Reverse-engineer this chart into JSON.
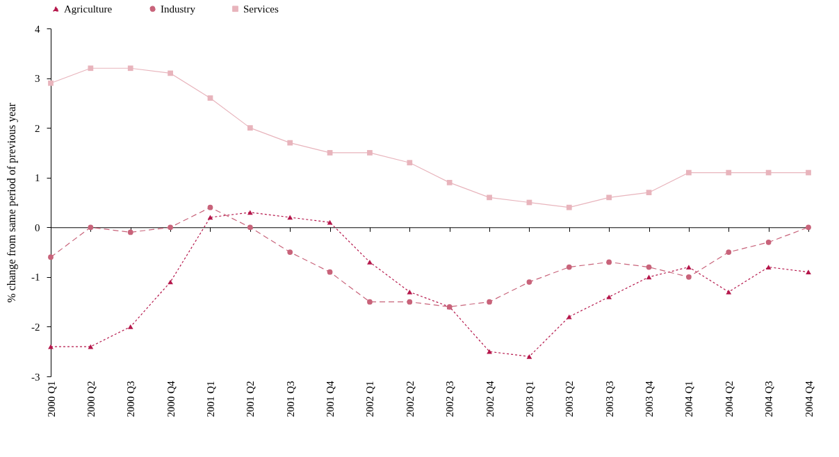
{
  "chart_data": {
    "type": "line",
    "ylabel": "% change from same period of previous year",
    "categories": [
      "2000 Q1",
      "2000 Q2",
      "2000 Q3",
      "2000 Q4",
      "2001 Q1",
      "2001 Q2",
      "2001 Q3",
      "2001 Q4",
      "2002 Q1",
      "2002 Q2",
      "2002 Q3",
      "2002 Q4",
      "2003 Q1",
      "2003 Q2",
      "2003 Q3",
      "2003 Q4",
      "2004 Q1",
      "2004 Q2",
      "2004 Q3",
      "2004 Q4"
    ],
    "series": [
      {
        "name": "Agriculture",
        "color": "#b5174b",
        "marker": "triangle",
        "line_style": "dotted",
        "values": [
          -2.4,
          -2.4,
          -2.0,
          -1.1,
          0.2,
          0.3,
          0.2,
          0.1,
          -0.7,
          -1.3,
          -1.6,
          -2.5,
          -2.6,
          -1.8,
          -1.4,
          -1.0,
          -0.8,
          -1.3,
          -0.8,
          -0.9
        ]
      },
      {
        "name": "Industry",
        "color": "#c8637a",
        "marker": "circle",
        "line_style": "dashed",
        "values": [
          -0.6,
          0,
          -0.1,
          0,
          0.4,
          0,
          -0.5,
          -0.9,
          -1.5,
          -1.5,
          -1.6,
          -1.5,
          -1.1,
          -0.8,
          -0.7,
          -0.8,
          -1.0,
          -0.5,
          -0.3,
          0
        ]
      },
      {
        "name": "Services",
        "color": "#e8b4bc",
        "marker": "square",
        "line_style": "solid",
        "values": [
          2.9,
          3.2,
          3.2,
          3.1,
          2.6,
          2.0,
          1.7,
          1.5,
          1.5,
          1.3,
          0.9,
          0.6,
          0.5,
          0.4,
          0.6,
          0.7,
          1.1,
          1.1,
          1.1,
          1.1
        ]
      }
    ],
    "ylim": [
      -3,
      4
    ],
    "yticks": [
      {
        "value": -3,
        "label": "-3"
      },
      {
        "value": -2,
        "label": "-2"
      },
      {
        "value": -1,
        "label": "-1"
      },
      {
        "value": 0,
        "label": "0"
      },
      {
        "value": 1,
        "label": "1"
      },
      {
        "value": 2,
        "label": "2"
      },
      {
        "value": 3,
        "label": "3"
      },
      {
        "value": 4,
        "label": "4"
      }
    ],
    "legend": "top"
  }
}
